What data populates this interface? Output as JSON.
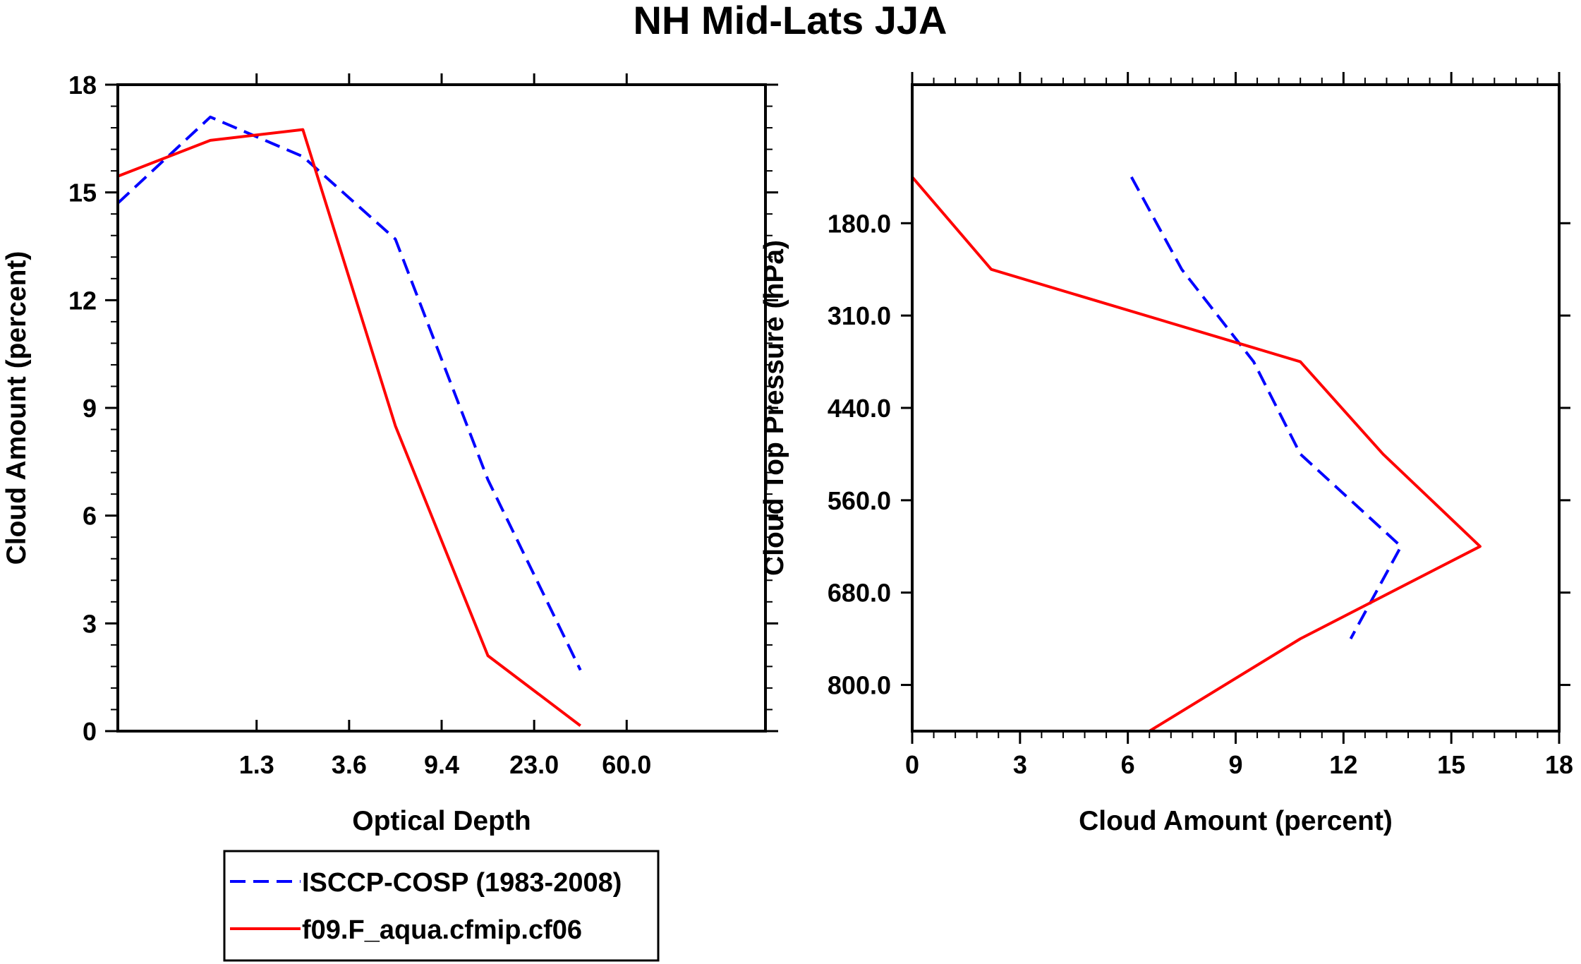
{
  "title": "NH Mid-Lats JJA",
  "chart_data": [
    {
      "type": "line",
      "name": "optical-depth-panel",
      "xlabel": "Optical Depth",
      "ylabel": "Cloud Amount (percent)",
      "xlim": [
        0,
        7
      ],
      "x_ticks": [
        {
          "value": 1.5,
          "label": "1.3"
        },
        {
          "value": 2.5,
          "label": "3.6"
        },
        {
          "value": 3.5,
          "label": "9.4"
        },
        {
          "value": 4.5,
          "label": "23.0"
        },
        {
          "value": 5.5,
          "label": "60.0"
        }
      ],
      "ylim": [
        0,
        18
      ],
      "y_ticks": [
        0,
        3,
        6,
        9,
        12,
        15,
        18
      ],
      "series": [
        {
          "name": "ISCCP-COSP (1983-2008)",
          "color": "#0000ff",
          "dash": true,
          "points": [
            [
              0.0,
              14.7
            ],
            [
              1.0,
              17.1
            ],
            [
              2.0,
              16.0
            ],
            [
              3.0,
              13.7
            ],
            [
              4.0,
              7.0
            ],
            [
              5.0,
              1.7
            ]
          ]
        },
        {
          "name": "f09.F_aqua.cfmip.cf06",
          "color": "#ff0000",
          "dash": false,
          "points": [
            [
              0.0,
              15.45
            ],
            [
              1.0,
              16.45
            ],
            [
              2.0,
              16.75
            ],
            [
              3.0,
              8.5
            ],
            [
              4.0,
              2.1
            ],
            [
              5.0,
              0.15
            ]
          ]
        }
      ]
    },
    {
      "type": "line",
      "name": "pressure-panel",
      "xlabel": "Cloud Amount (percent)",
      "ylabel": "Cloud Top Pressure (hPa)",
      "xlim": [
        0,
        18
      ],
      "x_ticks": [
        0,
        3,
        6,
        9,
        12,
        15,
        18
      ],
      "ylim": [
        0,
        7
      ],
      "y_ticks": [
        {
          "value": 1.5,
          "label": "180.0"
        },
        {
          "value": 2.5,
          "label": "310.0"
        },
        {
          "value": 3.5,
          "label": "440.0"
        },
        {
          "value": 4.5,
          "label": "560.0"
        },
        {
          "value": 5.5,
          "label": "680.0"
        },
        {
          "value": 6.5,
          "label": "800.0"
        }
      ],
      "series": [
        {
          "name": "ISCCP-COSP (1983-2008)",
          "color": "#0000ff",
          "dash": true,
          "points": [
            [
              6.1,
              1.0
            ],
            [
              7.5,
              2.0
            ],
            [
              9.5,
              3.0
            ],
            [
              10.8,
              4.0
            ],
            [
              13.6,
              5.0
            ],
            [
              12.2,
              6.0
            ]
          ]
        },
        {
          "name": "f09.F_aqua.cfmip.cf06",
          "color": "#ff0000",
          "dash": false,
          "points": [
            [
              0.0,
              1.0
            ],
            [
              2.2,
              2.0
            ],
            [
              10.8,
              3.0
            ],
            [
              13.1,
              4.0
            ],
            [
              15.8,
              5.0
            ],
            [
              10.8,
              6.0
            ],
            [
              6.6,
              7.0
            ]
          ]
        }
      ]
    }
  ],
  "legend": {
    "entries": [
      {
        "label": "ISCCP-COSP (1983-2008)",
        "color": "#0000ff",
        "dash": true
      },
      {
        "label": "f09.F_aqua.cfmip.cf06",
        "color": "#ff0000",
        "dash": false
      }
    ]
  }
}
